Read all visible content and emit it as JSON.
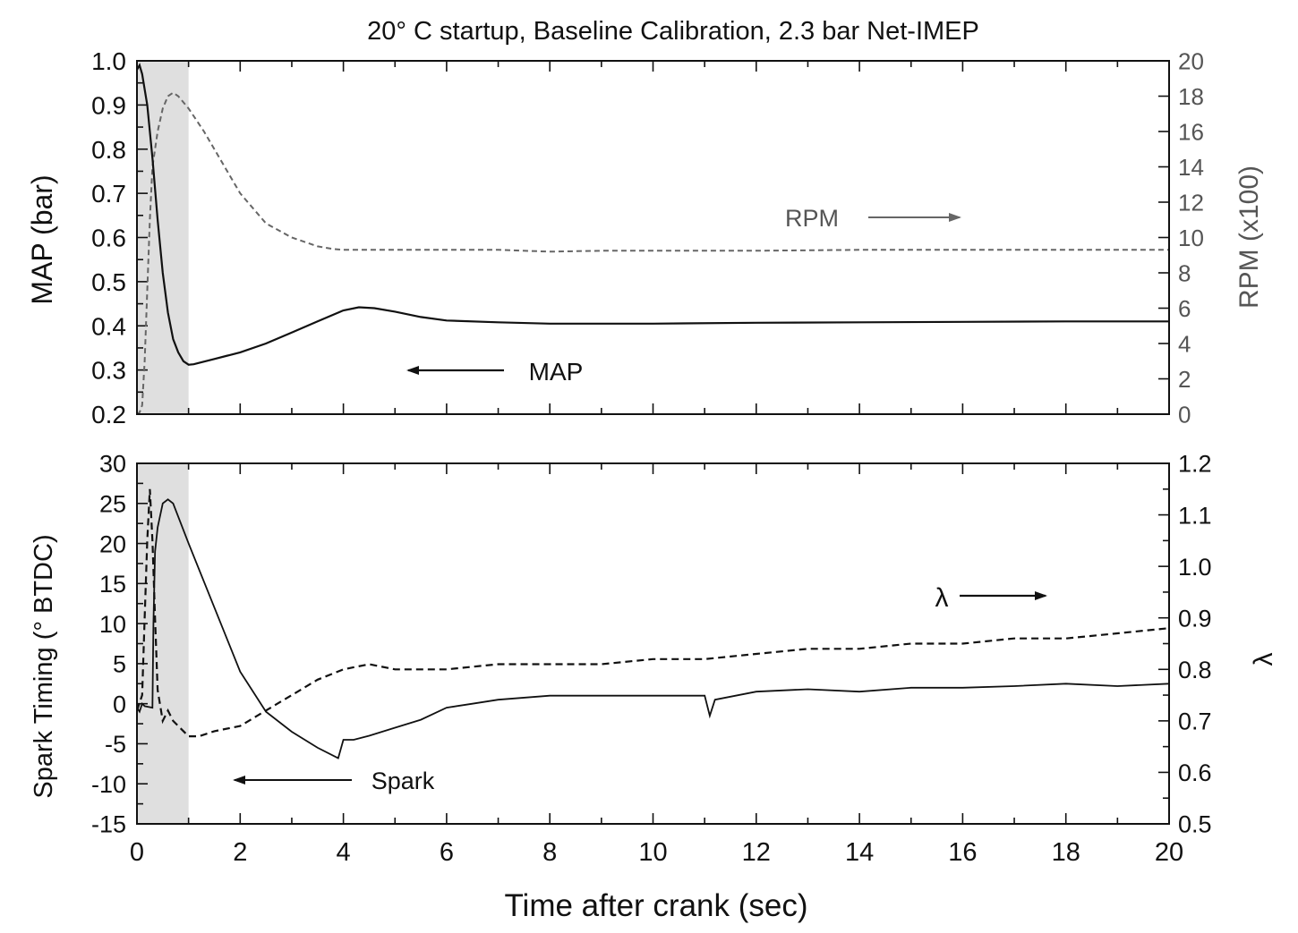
{
  "chart_data": [
    {
      "type": "line",
      "title": "20° C startup, Baseline Calibration, 2.3 bar Net-IMEP",
      "xlabel": "",
      "xlim": [
        0,
        20
      ],
      "x_ticks": [
        "0",
        "2",
        "4",
        "6",
        "8",
        "10",
        "12",
        "14",
        "16",
        "18",
        "20"
      ],
      "ylabel_left": "MAP (bar)",
      "ylim_left": [
        0.2,
        1.0
      ],
      "y_ticks_left": [
        "0.2",
        "0.3",
        "0.4",
        "0.5",
        "0.6",
        "0.7",
        "0.8",
        "0.9",
        "1.0"
      ],
      "ylabel_right": "RPM (x100)",
      "ylim_right": [
        0,
        20
      ],
      "y_ticks_right": [
        "0",
        "2",
        "4",
        "6",
        "8",
        "10",
        "12",
        "14",
        "16",
        "18",
        "20"
      ],
      "shaded_region": [
        0,
        1
      ],
      "series": [
        {
          "name": "MAP",
          "axis": "left",
          "style": "solid",
          "color": "#111111",
          "x": [
            0.0,
            0.05,
            0.1,
            0.2,
            0.3,
            0.4,
            0.5,
            0.6,
            0.7,
            0.8,
            0.9,
            1.0,
            1.1,
            1.2,
            1.5,
            2.0,
            2.5,
            3.0,
            3.5,
            4.0,
            4.3,
            4.6,
            5.0,
            5.5,
            6.0,
            7.0,
            8.0,
            9.0,
            10.0,
            12.0,
            14.0,
            16.0,
            18.0,
            20.0
          ],
          "y": [
            0.98,
            0.99,
            0.97,
            0.9,
            0.78,
            0.64,
            0.52,
            0.43,
            0.37,
            0.34,
            0.32,
            0.312,
            0.313,
            0.316,
            0.325,
            0.34,
            0.36,
            0.385,
            0.41,
            0.435,
            0.442,
            0.44,
            0.432,
            0.42,
            0.412,
            0.408,
            0.405,
            0.405,
            0.405,
            0.407,
            0.408,
            0.409,
            0.41,
            0.41
          ]
        },
        {
          "name": "RPM",
          "axis": "right",
          "style": "dashed",
          "color": "#555555",
          "x": [
            0.0,
            0.05,
            0.1,
            0.15,
            0.2,
            0.25,
            0.3,
            0.4,
            0.5,
            0.6,
            0.7,
            0.8,
            1.0,
            1.3,
            1.6,
            2.0,
            2.5,
            3.0,
            3.5,
            3.8,
            4.0,
            5.0,
            6.0,
            7.0,
            8.0,
            9.0,
            10.0,
            12.0,
            14.0,
            16.0,
            18.0,
            20.0
          ],
          "y": [
            0.0,
            0.1,
            0.5,
            3.0,
            7.0,
            11.0,
            14.0,
            16.0,
            17.3,
            18.0,
            18.2,
            18.0,
            17.3,
            16.0,
            14.5,
            12.5,
            10.8,
            10.0,
            9.5,
            9.35,
            9.3,
            9.3,
            9.3,
            9.3,
            9.2,
            9.25,
            9.25,
            9.25,
            9.3,
            9.3,
            9.3,
            9.3
          ]
        }
      ],
      "annotations": [
        {
          "text": "RPM",
          "arrow": "right"
        },
        {
          "text": "MAP",
          "arrow": "left"
        }
      ]
    },
    {
      "type": "line",
      "title": "",
      "xlabel": "Time after crank (sec)",
      "xlim": [
        0,
        20
      ],
      "x_ticks": [
        "0",
        "2",
        "4",
        "6",
        "8",
        "10",
        "12",
        "14",
        "16",
        "18",
        "20"
      ],
      "ylabel_left": "Spark Timing (° BTDC)",
      "ylim_left": [
        -15,
        30
      ],
      "y_ticks_left": [
        "-15",
        "-10",
        "-5",
        "0",
        "5",
        "10",
        "15",
        "20",
        "25",
        "30"
      ],
      "ylabel_right": "λ",
      "ylim_right": [
        0.5,
        1.2
      ],
      "y_ticks_right": [
        "0.5",
        "0.6",
        "0.7",
        "0.8",
        "0.9",
        "1.0",
        "1.1",
        "1.2"
      ],
      "shaded_region": [
        0,
        1
      ],
      "series": [
        {
          "name": "Spark",
          "axis": "left",
          "style": "solid",
          "color": "#111111",
          "x": [
            0.0,
            0.05,
            0.1,
            0.15,
            0.3,
            0.32,
            0.35,
            0.4,
            0.5,
            0.6,
            0.7,
            1.0,
            1.5,
            2.0,
            2.5,
            3.0,
            3.5,
            3.9,
            4.0,
            4.2,
            4.5,
            5.0,
            5.5,
            6.0,
            6.5,
            7.0,
            8.0,
            9.0,
            10.0,
            11.0,
            11.1,
            11.2,
            12.0,
            13.0,
            14.0,
            15.0,
            16.0,
            17.0,
            18.0,
            19.0,
            20.0
          ],
          "y": [
            -0.5,
            -1.0,
            0.0,
            -0.3,
            -0.5,
            10.0,
            19.0,
            22.0,
            25.0,
            25.5,
            25.0,
            20.0,
            12.0,
            4.0,
            -1.0,
            -3.5,
            -5.5,
            -6.8,
            -4.5,
            -4.5,
            -4.0,
            -3.0,
            -2.0,
            -0.5,
            0.0,
            0.5,
            1.0,
            1.0,
            1.0,
            1.0,
            -1.5,
            0.5,
            1.5,
            1.8,
            1.5,
            2.0,
            2.0,
            2.2,
            2.5,
            2.2,
            2.5
          ]
        },
        {
          "name": "λ",
          "axis": "right",
          "style": "dashed",
          "color": "#111111",
          "x": [
            0.0,
            0.1,
            0.15,
            0.2,
            0.25,
            0.3,
            0.35,
            0.4,
            0.5,
            0.6,
            0.7,
            0.8,
            1.0,
            1.2,
            1.5,
            2.0,
            2.5,
            3.0,
            3.5,
            4.0,
            4.5,
            5.0,
            6.0,
            7.0,
            8.0,
            9.0,
            10.0,
            11.0,
            12.0,
            13.0,
            14.0,
            15.0,
            16.0,
            17.0,
            18.0,
            19.0,
            20.0
          ],
          "y": [
            0.72,
            0.75,
            0.9,
            1.05,
            1.15,
            1.05,
            0.9,
            0.76,
            0.7,
            0.72,
            0.7,
            0.69,
            0.67,
            0.67,
            0.68,
            0.69,
            0.72,
            0.75,
            0.78,
            0.8,
            0.81,
            0.8,
            0.8,
            0.81,
            0.81,
            0.81,
            0.82,
            0.82,
            0.83,
            0.84,
            0.84,
            0.85,
            0.85,
            0.86,
            0.86,
            0.87,
            0.88
          ]
        }
      ],
      "annotations": [
        {
          "text": "λ",
          "arrow": "right"
        },
        {
          "text": "Spark",
          "arrow": "left"
        }
      ]
    }
  ]
}
